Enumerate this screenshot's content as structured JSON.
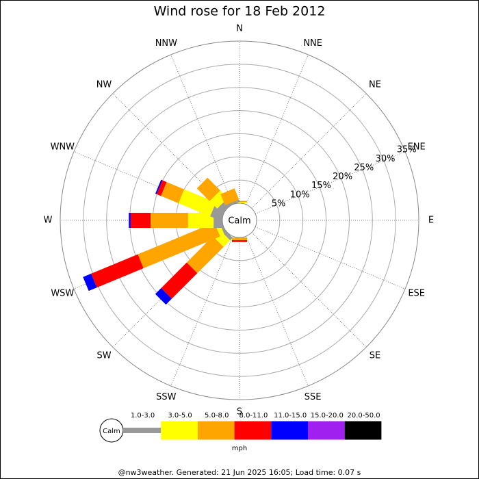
{
  "chart_data": {
    "type": "windrose",
    "title": "Wind rose for 18 Feb 2012",
    "categories": [
      "N",
      "NNE",
      "NE",
      "ENE",
      "E",
      "ESE",
      "SE",
      "SSE",
      "S",
      "SSW",
      "SW",
      "WSW",
      "W",
      "WNW",
      "NW",
      "NNW"
    ],
    "series": [
      {
        "name": "1.0-3.0",
        "color": "#999999",
        "values": [
          0,
          0,
          0,
          0,
          0,
          0,
          0,
          0,
          0,
          0,
          0.8,
          0.5,
          1.9,
          2.5,
          1.5,
          0.5
        ]
      },
      {
        "name": "3.0-5.0",
        "color": "#ffff00",
        "values": [
          0.3,
          0,
          0,
          0,
          0,
          0,
          0,
          0,
          0,
          0,
          2.0,
          1.0,
          5.5,
          7.4,
          2.3,
          0
        ]
      },
      {
        "name": "5.0-8.0",
        "color": "#ffa500",
        "values": [
          0.2,
          0,
          0,
          0,
          0,
          0,
          0,
          0,
          0.6,
          0,
          8.0,
          17.9,
          8.1,
          4.1,
          3.9,
          2.6
        ]
      },
      {
        "name": "8.0-11.0",
        "color": "#ff0000",
        "values": [
          0,
          0,
          0,
          0,
          0,
          0,
          0,
          0,
          0.4,
          0,
          7.8,
          10.9,
          4.3,
          1.0,
          0,
          0
        ]
      },
      {
        "name": "11.0-15.0",
        "color": "#0000ff",
        "values": [
          0,
          0,
          0,
          0,
          0,
          0,
          0,
          0,
          0,
          0,
          1.8,
          1.9,
          0.4,
          0.3,
          0,
          0
        ]
      },
      {
        "name": "15.0-20.0",
        "color": "#a020f0",
        "values": [
          0,
          0,
          0,
          0,
          0,
          0,
          0,
          0,
          0,
          0,
          0,
          0,
          0,
          0,
          0,
          0
        ]
      },
      {
        "name": "20.0-50.0",
        "color": "#000000",
        "values": [
          0,
          0,
          0,
          0,
          0,
          0,
          0,
          0,
          0,
          0,
          0,
          0,
          0,
          0,
          0,
          0
        ]
      }
    ],
    "rlim": [
      0,
      35
    ],
    "rticks": [
      {
        "value": 5,
        "label": "5%"
      },
      {
        "value": 10,
        "label": "10%"
      },
      {
        "value": 15,
        "label": "15%"
      },
      {
        "value": 20,
        "label": "20%"
      },
      {
        "value": 25,
        "label": "25%"
      },
      {
        "value": 30,
        "label": "30%"
      },
      {
        "value": 35,
        "label": "35%"
      }
    ],
    "center_label": "Calm",
    "legend_calm": "Calm",
    "legend_unit": "mph",
    "footer": "@nw3weather. Generated: 21 Jun 2025 16:05; Load time: 0.07 s"
  }
}
